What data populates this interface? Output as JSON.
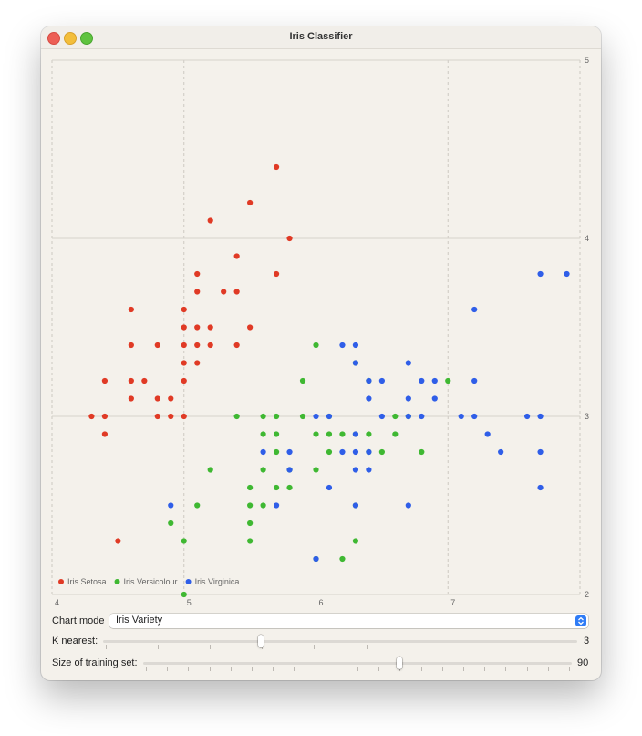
{
  "window": {
    "title": "Iris Classifier"
  },
  "colors": {
    "setosa": "#e03a25",
    "versicolour": "#3fb832",
    "virginica": "#2f5ee8"
  },
  "chart_data": {
    "type": "scatter",
    "xlim": [
      4,
      8
    ],
    "ylim": [
      2,
      5
    ],
    "x_ticks": [
      "4",
      "5",
      "6",
      "7"
    ],
    "y_ticks": [
      "5",
      "4",
      "3",
      "2"
    ],
    "grid": true,
    "legend_position": "bottom-left",
    "series": [
      {
        "name": "Iris Setosa",
        "color": "#e03a25",
        "points": [
          [
            4.3,
            3.0
          ],
          [
            4.4,
            2.9
          ],
          [
            4.4,
            3.0
          ],
          [
            4.4,
            3.2
          ],
          [
            4.5,
            2.3
          ],
          [
            4.6,
            3.1
          ],
          [
            4.6,
            3.2
          ],
          [
            4.6,
            3.4
          ],
          [
            4.6,
            3.6
          ],
          [
            4.7,
            3.2
          ],
          [
            4.8,
            3.0
          ],
          [
            4.8,
            3.1
          ],
          [
            4.8,
            3.4
          ],
          [
            4.9,
            3.0
          ],
          [
            4.9,
            3.1
          ],
          [
            5.0,
            3.0
          ],
          [
            5.0,
            3.2
          ],
          [
            5.0,
            3.3
          ],
          [
            5.0,
            3.4
          ],
          [
            5.0,
            3.5
          ],
          [
            5.0,
            3.6
          ],
          [
            5.1,
            3.3
          ],
          [
            5.1,
            3.4
          ],
          [
            5.1,
            3.5
          ],
          [
            5.1,
            3.7
          ],
          [
            5.1,
            3.8
          ],
          [
            5.2,
            3.4
          ],
          [
            5.2,
            3.5
          ],
          [
            5.2,
            4.1
          ],
          [
            5.3,
            3.7
          ],
          [
            5.4,
            3.4
          ],
          [
            5.4,
            3.7
          ],
          [
            5.4,
            3.9
          ],
          [
            5.5,
            3.5
          ],
          [
            5.5,
            4.2
          ],
          [
            5.7,
            3.8
          ],
          [
            5.7,
            4.4
          ],
          [
            5.8,
            4.0
          ]
        ]
      },
      {
        "name": "Iris Versicolour",
        "color": "#3fb832",
        "points": [
          [
            4.9,
            2.4
          ],
          [
            5.0,
            2.0
          ],
          [
            5.0,
            2.3
          ],
          [
            5.1,
            2.5
          ],
          [
            5.2,
            2.7
          ],
          [
            5.4,
            3.0
          ],
          [
            5.5,
            2.3
          ],
          [
            5.5,
            2.4
          ],
          [
            5.5,
            2.5
          ],
          [
            5.5,
            2.6
          ],
          [
            5.6,
            2.5
          ],
          [
            5.6,
            2.7
          ],
          [
            5.6,
            2.9
          ],
          [
            5.6,
            3.0
          ],
          [
            5.7,
            2.6
          ],
          [
            5.7,
            2.8
          ],
          [
            5.7,
            2.9
          ],
          [
            5.7,
            3.0
          ],
          [
            5.8,
            2.6
          ],
          [
            5.8,
            2.7
          ],
          [
            5.9,
            3.0
          ],
          [
            5.9,
            3.2
          ],
          [
            6.0,
            2.2
          ],
          [
            6.0,
            2.7
          ],
          [
            6.0,
            2.9
          ],
          [
            6.0,
            3.4
          ],
          [
            6.1,
            2.8
          ],
          [
            6.1,
            2.9
          ],
          [
            6.1,
            3.0
          ],
          [
            6.2,
            2.2
          ],
          [
            6.2,
            2.9
          ],
          [
            6.3,
            2.3
          ],
          [
            6.3,
            2.5
          ],
          [
            6.3,
            2.9
          ],
          [
            6.3,
            3.3
          ],
          [
            6.4,
            2.8
          ],
          [
            6.4,
            2.9
          ],
          [
            6.4,
            3.2
          ],
          [
            6.5,
            2.8
          ],
          [
            6.6,
            2.9
          ],
          [
            6.6,
            3.0
          ],
          [
            6.7,
            3.0
          ],
          [
            6.8,
            2.8
          ],
          [
            7.0,
            3.2
          ]
        ]
      },
      {
        "name": "Iris Virginica",
        "color": "#2f5ee8",
        "points": [
          [
            4.9,
            2.5
          ],
          [
            5.6,
            2.8
          ],
          [
            5.7,
            2.5
          ],
          [
            5.8,
            2.7
          ],
          [
            5.8,
            2.8
          ],
          [
            6.0,
            2.2
          ],
          [
            6.0,
            3.0
          ],
          [
            6.1,
            2.6
          ],
          [
            6.1,
            3.0
          ],
          [
            6.2,
            2.8
          ],
          [
            6.2,
            3.4
          ],
          [
            6.3,
            2.5
          ],
          [
            6.3,
            2.7
          ],
          [
            6.3,
            2.8
          ],
          [
            6.3,
            2.9
          ],
          [
            6.3,
            3.3
          ],
          [
            6.3,
            3.4
          ],
          [
            6.4,
            2.7
          ],
          [
            6.4,
            2.8
          ],
          [
            6.4,
            3.1
          ],
          [
            6.4,
            3.2
          ],
          [
            6.5,
            3.0
          ],
          [
            6.5,
            3.2
          ],
          [
            6.7,
            2.5
          ],
          [
            6.7,
            3.0
          ],
          [
            6.7,
            3.1
          ],
          [
            6.7,
            3.3
          ],
          [
            6.8,
            3.0
          ],
          [
            6.8,
            3.2
          ],
          [
            6.9,
            3.1
          ],
          [
            6.9,
            3.2
          ],
          [
            7.1,
            3.0
          ],
          [
            7.2,
            3.0
          ],
          [
            7.2,
            3.2
          ],
          [
            7.2,
            3.6
          ],
          [
            7.3,
            2.9
          ],
          [
            7.4,
            2.8
          ],
          [
            7.6,
            3.0
          ],
          [
            7.7,
            2.6
          ],
          [
            7.7,
            2.8
          ],
          [
            7.7,
            3.0
          ],
          [
            7.7,
            3.8
          ],
          [
            7.9,
            3.8
          ]
        ]
      }
    ]
  },
  "controls": {
    "chart_mode_label": "Chart mode",
    "chart_mode_value": "Iris Variety",
    "k_label": "K nearest:",
    "k_value": "3",
    "k_fraction": 0.33,
    "train_label": "Size of training set:",
    "train_value": "90",
    "train_fraction": 0.6
  }
}
